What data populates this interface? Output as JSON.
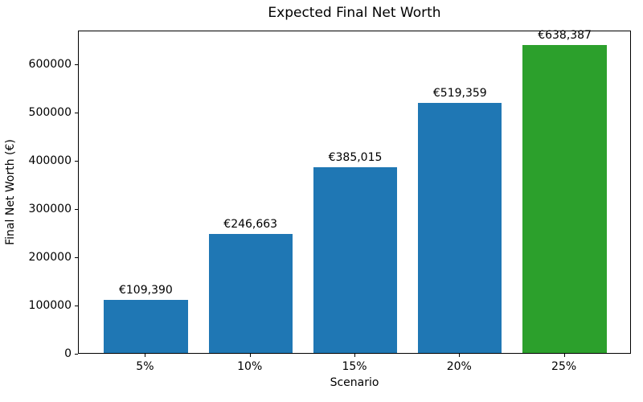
{
  "chart_data": {
    "type": "bar",
    "title": "Expected Final Net Worth",
    "xlabel": "Scenario",
    "ylabel": "Final Net Worth (€)",
    "categories": [
      "5%",
      "10%",
      "15%",
      "20%",
      "25%"
    ],
    "values": [
      109390,
      246663,
      385015,
      519359,
      638387
    ],
    "bar_labels": [
      "€109,390",
      "€246,663",
      "€385,015",
      "€519,359",
      "€638,387"
    ],
    "bar_colors": [
      "#1f77b4",
      "#1f77b4",
      "#1f77b4",
      "#1f77b4",
      "#2ca02c"
    ],
    "y_ticks": [
      0,
      100000,
      200000,
      300000,
      400000,
      500000,
      600000
    ],
    "y_tick_labels": [
      "0",
      "100000",
      "200000",
      "300000",
      "400000",
      "500000",
      "600000"
    ],
    "ylim": [
      0,
      670306
    ],
    "grid": false,
    "legend_position": "none",
    "axis_color": "#000000",
    "background_color": "#ffffff"
  }
}
